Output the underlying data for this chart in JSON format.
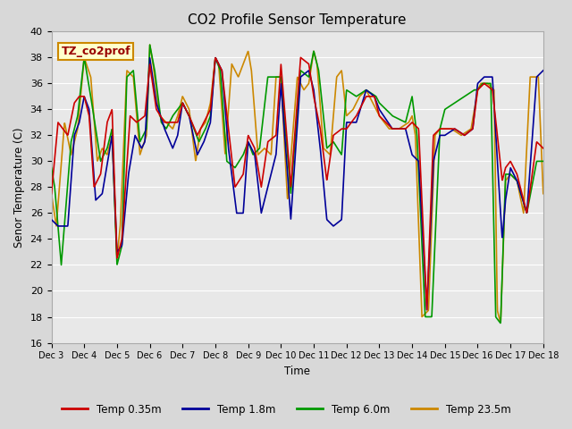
{
  "title": "CO2 Profile Sensor Temperature",
  "ylabel": "Senor Temperature (C)",
  "xlabel": "Time",
  "annotation_label": "TZ_co2prof",
  "annotation_color": "#990000",
  "annotation_bg": "#ffffcc",
  "annotation_border": "#cc8800",
  "ylim": [
    16,
    40
  ],
  "x_tick_labels": [
    "Dec 3",
    "Dec 4",
    "Dec 5",
    "Dec 6",
    "Dec 7",
    "Dec 8",
    "Dec 9",
    "Dec 10",
    "Dec 11",
    "Dec 12",
    "Dec 13",
    "Dec 14",
    "Dec 15",
    "Dec 16",
    "Dec 17",
    "Dec 18"
  ],
  "line_colors": {
    "temp035": "#cc0000",
    "temp18": "#000099",
    "temp60": "#009900",
    "temp235": "#cc8800"
  },
  "legend_labels": [
    "Temp 0.35m",
    "Temp 1.8m",
    "Temp 6.0m",
    "Temp 23.5m"
  ]
}
